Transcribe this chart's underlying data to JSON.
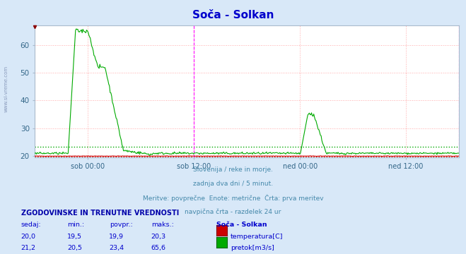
{
  "title": "Soča - Solkan",
  "title_color": "#0000cc",
  "bg_color": "#d8e8f8",
  "plot_bg_color": "#ffffff",
  "grid_color": "#ffaaaa",
  "grid_linestyle": ":",
  "ylim": [
    19.5,
    67
  ],
  "yticks": [
    20,
    30,
    40,
    50,
    60
  ],
  "n_points": 576,
  "x_tick_labels": [
    "sob 00:00",
    "sob 12:00",
    "ned 00:00",
    "ned 12:00"
  ],
  "x_tick_positions": [
    0.125,
    0.375,
    0.625,
    0.875
  ],
  "vline_color": "#ff00ff",
  "temp_color": "#cc0000",
  "flow_color": "#00aa00",
  "temp_avg": 19.9,
  "flow_avg": 23.4,
  "subtitle_lines": [
    "Slovenija / reke in morje.",
    "zadnja dva dni / 5 minut.",
    "Meritve: povprečne  Enote: metrične  Črta: prva meritev",
    "navpična črta - razdelek 24 ur"
  ],
  "subtitle_color": "#4488aa",
  "table_header": "ZGODOVINSKE IN TRENUTNE VREDNOSTI",
  "table_cols": [
    "sedaj:",
    "min.:",
    "povpr.:",
    "maks.:",
    "Soča - Solkan"
  ],
  "table_row1": [
    "20,0",
    "19,5",
    "19,9",
    "20,3"
  ],
  "table_row2": [
    "21,2",
    "20,5",
    "23,4",
    "65,6"
  ],
  "table_legend1": "temperatura[C]",
  "table_legend2": "pretok[m3/s]",
  "table_color": "#0000cc",
  "table_header_color": "#0000aa",
  "left_watermark": "www.si-vreme.com",
  "left_wm_color": "#8899bb"
}
